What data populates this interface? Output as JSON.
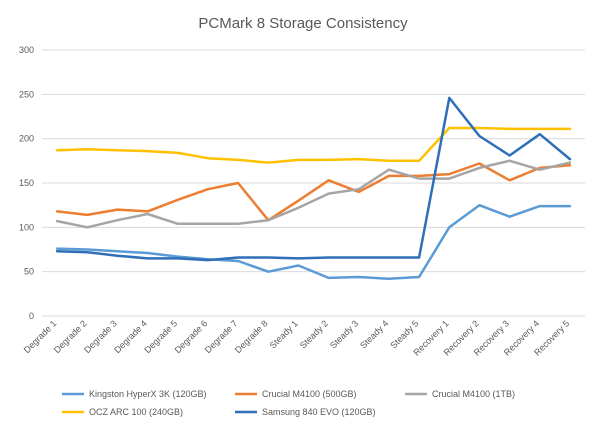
{
  "chart_data": {
    "type": "line",
    "title": "PCMark 8 Storage Consistency",
    "xlabel": "",
    "ylabel": "",
    "ylim": [
      0,
      300
    ],
    "yticks": [
      0,
      50,
      100,
      150,
      200,
      250,
      300
    ],
    "grid": true,
    "legend": "bottom",
    "categories": [
      "Degrade 1",
      "Degrade 2",
      "Degrade 3",
      "Degrade 4",
      "Degrade 5",
      "Degrade 6",
      "Degrade 7",
      "Degrade 8",
      "Steady 1",
      "Steady 2",
      "Steady 3",
      "Steady 4",
      "Steady 5",
      "Recovery 1",
      "Recovery 2",
      "Recovery 3",
      "Recovery 4",
      "Recovery 5"
    ],
    "series": [
      {
        "name": "Kingston HyperX 3K (120GB)",
        "color": "#5b9bd5",
        "values": [
          76,
          75,
          73,
          71,
          67,
          64,
          62,
          50,
          57,
          43,
          44,
          42,
          44,
          100,
          125,
          112,
          124,
          124
        ]
      },
      {
        "name": "Crucial M4100 (500GB)",
        "color": "#ed7d31",
        "values": [
          118,
          114,
          120,
          118,
          131,
          143,
          150,
          108,
          130,
          153,
          140,
          158,
          158,
          160,
          172,
          153,
          167,
          170
        ]
      },
      {
        "name": "Crucial M4100 (1TB)",
        "color": "#a5a5a5",
        "values": [
          107,
          100,
          108,
          115,
          104,
          104,
          104,
          108,
          122,
          138,
          143,
          165,
          155,
          155,
          167,
          175,
          165,
          173
        ]
      },
      {
        "name": "OCZ ARC 100 (240GB)",
        "color": "#ffc000",
        "values": [
          187,
          188,
          187,
          186,
          184,
          178,
          176,
          173,
          176,
          176,
          177,
          175,
          175,
          212,
          212,
          211,
          211,
          211
        ]
      },
      {
        "name": "Samsung 840 EVO (120GB)",
        "color": "#2f6fb8",
        "values": [
          73,
          72,
          68,
          65,
          65,
          63,
          66,
          66,
          65,
          66,
          66,
          66,
          66,
          246,
          203,
          181,
          205,
          177
        ]
      }
    ]
  }
}
